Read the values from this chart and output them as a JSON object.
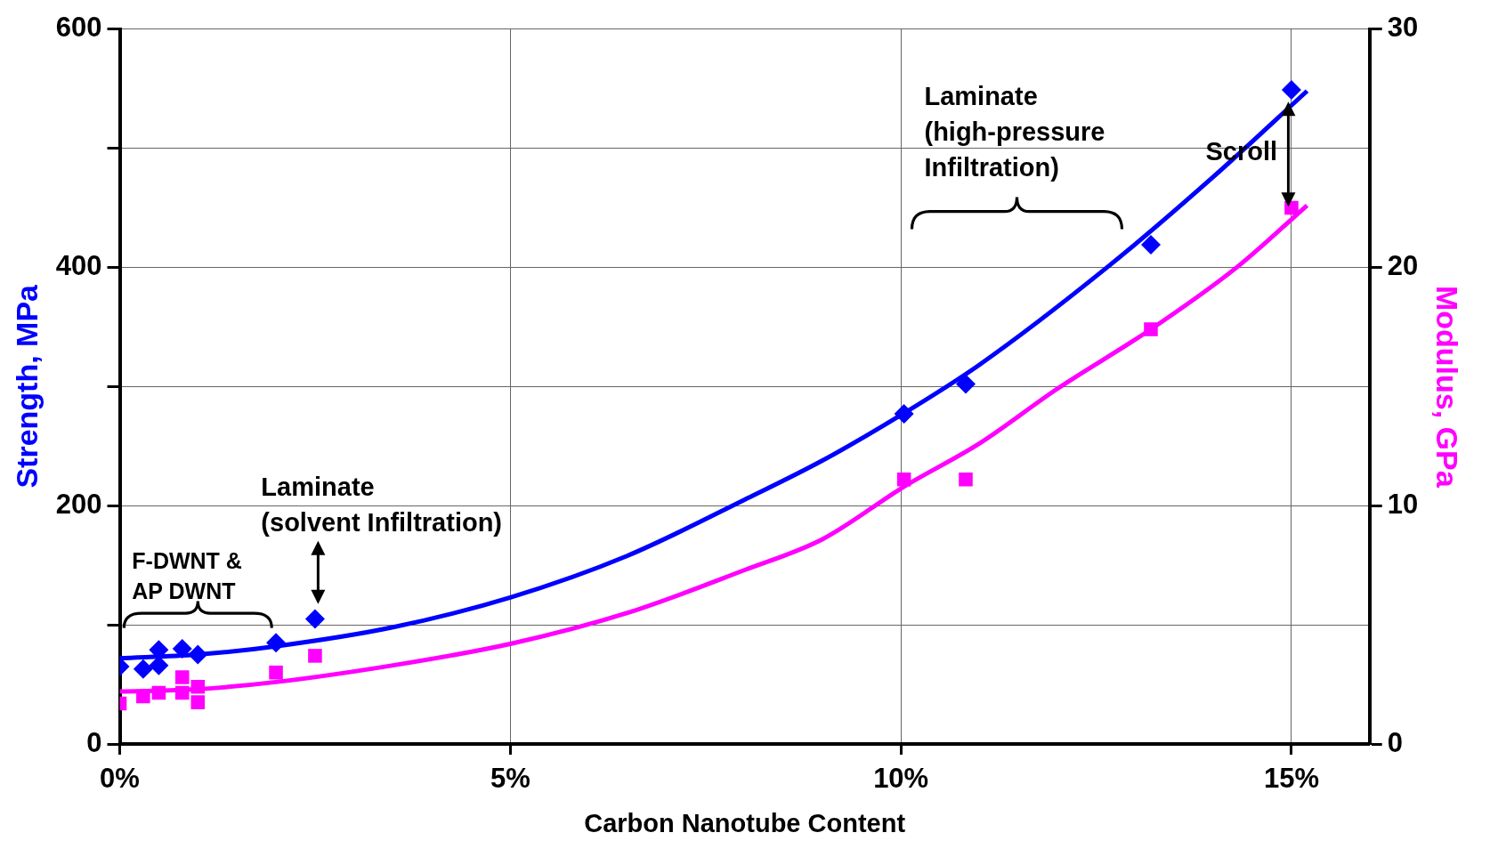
{
  "chart_data": {
    "type": "scatter",
    "xlabel": "Carbon Nanotube Content",
    "ylabel": "Strength, MPa",
    "y2label": "Modulus, GPa",
    "xlim": [
      0,
      16
    ],
    "xticks": [
      {
        "value": 0,
        "label": "0%"
      },
      {
        "value": 5,
        "label": "5%"
      },
      {
        "value": 10,
        "label": "10%"
      },
      {
        "value": 15,
        "label": "15%"
      }
    ],
    "ylim": [
      0,
      600
    ],
    "yticks": [
      0,
      {
        "value": 100,
        "label": null
      },
      200,
      {
        "value": 300,
        "label": null
      },
      400,
      {
        "value": 500,
        "label": null
      },
      600
    ],
    "y2lim": [
      0,
      30
    ],
    "y2ticks": [
      0,
      10,
      20,
      30
    ],
    "grid": true,
    "legend": false,
    "series": [
      {
        "marker": "diamond",
        "color": "#0000ff",
        "x": [
          0,
          0.3,
          0.5,
          0.5,
          0.8,
          1.0,
          2.0,
          2.5,
          10.04,
          10.83,
          13.2,
          15
        ],
        "values": [
          65,
          63,
          79,
          66,
          80,
          75,
          85,
          105,
          277,
          302,
          419,
          549
        ]
      },
      {
        "marker": "square",
        "color": "#ff00ff",
        "axis": "y2",
        "x": [
          0,
          0.3,
          0.5,
          0.8,
          0.8,
          1.0,
          1.0,
          2.0,
          2.5,
          10.04,
          10.83,
          13.2,
          15
        ],
        "values": [
          1.7,
          2.0,
          2.15,
          2.8,
          2.15,
          2.4,
          1.75,
          3.0,
          3.7,
          11.1,
          11.1,
          17.4,
          22.5
        ]
      },
      {
        "type": "line",
        "color": "#0000ff",
        "x": [
          0,
          1,
          2,
          3.5,
          5,
          6.5,
          8,
          9,
          10,
          11,
          12.64,
          14,
          15.2
        ],
        "values": [
          72,
          75,
          82,
          98,
          123,
          158,
          205,
          238,
          276,
          318,
          400,
          476,
          548
        ]
      },
      {
        "type": "line",
        "color": "#ff00ff",
        "axis": "y2",
        "x": [
          0,
          1,
          2,
          3.5,
          5,
          6.5,
          8,
          9,
          10.04,
          11,
          12,
          13.2,
          14.3,
          15.2
        ],
        "values": [
          2.2,
          2.3,
          2.6,
          3.3,
          4.2,
          5.5,
          7.3,
          8.6,
          10.8,
          12.6,
          14.9,
          17.4,
          20,
          22.6
        ]
      }
    ],
    "annotations": [
      "Laminate\n(solvent Infiltration)",
      {
        "text": "F-DWNT &\nAP DWNT",
        "x": 1.0,
        "y": 75
      },
      "Laminate\n(high-pressure\nInfiltration)",
      "Scroll"
    ]
  }
}
